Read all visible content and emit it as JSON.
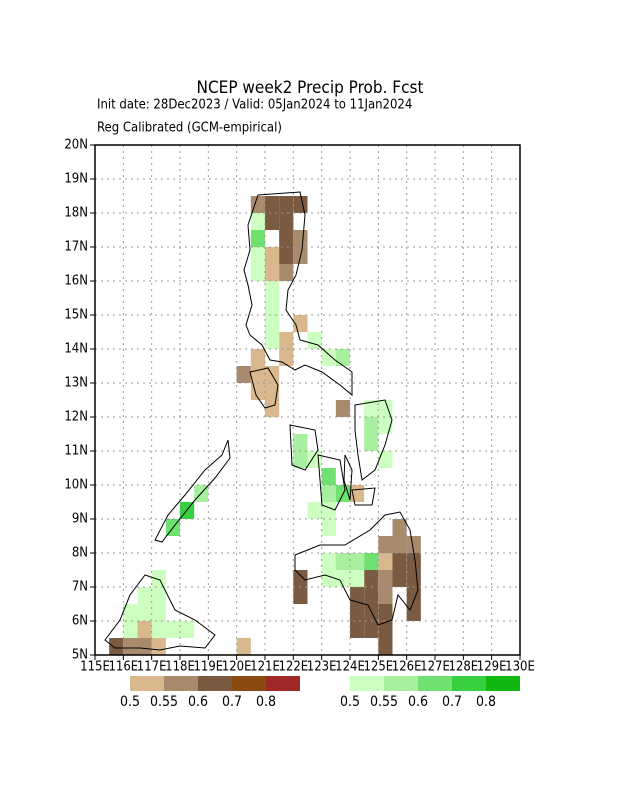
{
  "chart_data": {
    "type": "gridmap",
    "title": "NCEP week2 Precip Prob. Fcst",
    "subtitle": "Init date: 28Dec2023 / Valid: 05Jan2024 to 11Jan2024",
    "note": "Reg Calibrated (GCM-empirical)",
    "xlim": [
      115,
      130
    ],
    "ylim": [
      5,
      20
    ],
    "xticks": [
      {
        "value": 115,
        "label": "115E"
      },
      {
        "value": 116,
        "label": "116E"
      },
      {
        "value": 117,
        "label": "117E"
      },
      {
        "value": 118,
        "label": "118E"
      },
      {
        "value": 119,
        "label": "119E"
      },
      {
        "value": 120,
        "label": "120E"
      },
      {
        "value": 121,
        "label": "121E"
      },
      {
        "value": 122,
        "label": "122E"
      },
      {
        "value": 123,
        "label": "123E"
      },
      {
        "value": 124,
        "label": "124E"
      },
      {
        "value": 125,
        "label": "125E"
      },
      {
        "value": 126,
        "label": "126E"
      },
      {
        "value": 127,
        "label": "127E"
      },
      {
        "value": 128,
        "label": "128E"
      },
      {
        "value": 129,
        "label": "129E"
      },
      {
        "value": 130,
        "label": "130E"
      }
    ],
    "yticks": [
      {
        "value": 5,
        "label": "5N"
      },
      {
        "value": 6,
        "label": "6N"
      },
      {
        "value": 7,
        "label": "7N"
      },
      {
        "value": 8,
        "label": "8N"
      },
      {
        "value": 9,
        "label": "9N"
      },
      {
        "value": 10,
        "label": "10N"
      },
      {
        "value": 11,
        "label": "11N"
      },
      {
        "value": 12,
        "label": "12N"
      },
      {
        "value": 13,
        "label": "13N"
      },
      {
        "value": 14,
        "label": "14N"
      },
      {
        "value": 15,
        "label": "15N"
      },
      {
        "value": 16,
        "label": "16N"
      },
      {
        "value": 17,
        "label": "17N"
      },
      {
        "value": 18,
        "label": "18N"
      },
      {
        "value": 19,
        "label": "19N"
      },
      {
        "value": 20,
        "label": "20N"
      }
    ],
    "grid": true,
    "cell_size": 0.5,
    "levels": [
      0.5,
      0.55,
      0.6,
      0.7,
      0.8
    ],
    "below_colors": [
      "#d8b88c",
      "#a88a6c",
      "#7a5a40",
      "#8a4a10",
      "#a02828"
    ],
    "above_colors": [
      "#ccffc0",
      "#a8f0a0",
      "#70e070",
      "#38d040",
      "#10b810"
    ],
    "below": [
      {
        "lon": 120.5,
        "lat": 18,
        "p": 0.55
      },
      {
        "lon": 121,
        "lat": 18,
        "p": 0.6
      },
      {
        "lon": 121.5,
        "lat": 18,
        "p": 0.6
      },
      {
        "lon": 122,
        "lat": 18,
        "p": 0.6
      },
      {
        "lon": 121,
        "lat": 17.5,
        "p": 0.6
      },
      {
        "lon": 121.5,
        "lat": 17.5,
        "p": 0.6
      },
      {
        "lon": 121.5,
        "lat": 17,
        "p": 0.6
      },
      {
        "lon": 122,
        "lat": 17,
        "p": 0.55
      },
      {
        "lon": 121,
        "lat": 16.5,
        "p": 0.5
      },
      {
        "lon": 121.5,
        "lat": 16.5,
        "p": 0.6
      },
      {
        "lon": 122,
        "lat": 16.5,
        "p": 0.55
      },
      {
        "lon": 121,
        "lat": 16,
        "p": 0.5
      },
      {
        "lon": 121.5,
        "lat": 16,
        "p": 0.55
      },
      {
        "lon": 122,
        "lat": 14.5,
        "p": 0.5
      },
      {
        "lon": 121.5,
        "lat": 14,
        "p": 0.5
      },
      {
        "lon": 120.5,
        "lat": 13.5,
        "p": 0.5
      },
      {
        "lon": 121.5,
        "lat": 13.5,
        "p": 0.5
      },
      {
        "lon": 120,
        "lat": 13,
        "p": 0.55
      },
      {
        "lon": 120.5,
        "lat": 13,
        "p": 0.5
      },
      {
        "lon": 121,
        "lat": 13,
        "p": 0.5
      },
      {
        "lon": 120.5,
        "lat": 12.5,
        "p": 0.5
      },
      {
        "lon": 121,
        "lat": 12.5,
        "p": 0.5
      },
      {
        "lon": 121,
        "lat": 12,
        "p": 0.5
      },
      {
        "lon": 123.5,
        "lat": 12,
        "p": 0.55
      },
      {
        "lon": 122,
        "lat": 11,
        "p": 0.5
      },
      {
        "lon": 124,
        "lat": 9.5,
        "p": 0.5
      },
      {
        "lon": 125.5,
        "lat": 8.5,
        "p": 0.55
      },
      {
        "lon": 125,
        "lat": 8,
        "p": 0.55
      },
      {
        "lon": 125.5,
        "lat": 8,
        "p": 0.55
      },
      {
        "lon": 126,
        "lat": 8,
        "p": 0.55
      },
      {
        "lon": 125,
        "lat": 7.5,
        "p": 0.5
      },
      {
        "lon": 125.5,
        "lat": 7.5,
        "p": 0.6
      },
      {
        "lon": 126,
        "lat": 7.5,
        "p": 0.6
      },
      {
        "lon": 122,
        "lat": 7,
        "p": 0.6
      },
      {
        "lon": 124.5,
        "lat": 7,
        "p": 0.6
      },
      {
        "lon": 125,
        "lat": 7,
        "p": 0.55
      },
      {
        "lon": 125.5,
        "lat": 7,
        "p": 0.6
      },
      {
        "lon": 126,
        "lat": 7,
        "p": 0.6
      },
      {
        "lon": 122,
        "lat": 6.5,
        "p": 0.6
      },
      {
        "lon": 124,
        "lat": 6.5,
        "p": 0.6
      },
      {
        "lon": 124.5,
        "lat": 6.5,
        "p": 0.6
      },
      {
        "lon": 125,
        "lat": 6.5,
        "p": 0.55
      },
      {
        "lon": 126,
        "lat": 6.5,
        "p": 0.6
      },
      {
        "lon": 124,
        "lat": 6,
        "p": 0.6
      },
      {
        "lon": 124.5,
        "lat": 6,
        "p": 0.6
      },
      {
        "lon": 125,
        "lat": 6,
        "p": 0.6
      },
      {
        "lon": 126,
        "lat": 6,
        "p": 0.6
      },
      {
        "lon": 124,
        "lat": 5.5,
        "p": 0.6
      },
      {
        "lon": 124.5,
        "lat": 5.5,
        "p": 0.6
      },
      {
        "lon": 125,
        "lat": 5.5,
        "p": 0.6
      },
      {
        "lon": 125,
        "lat": 5,
        "p": 0.6
      },
      {
        "lon": 115.5,
        "lat": 5,
        "p": 0.6
      },
      {
        "lon": 116,
        "lat": 5,
        "p": 0.55
      },
      {
        "lon": 116.5,
        "lat": 5,
        "p": 0.55
      },
      {
        "lon": 117,
        "lat": 5,
        "p": 0.5
      },
      {
        "lon": 116.5,
        "lat": 5.5,
        "p": 0.5
      },
      {
        "lon": 120,
        "lat": 5,
        "p": 0.5
      }
    ],
    "above": [
      {
        "lon": 120.5,
        "lat": 17.5,
        "p": 0.5
      },
      {
        "lon": 120.5,
        "lat": 17,
        "p": 0.6
      },
      {
        "lon": 120.5,
        "lat": 16.5,
        "p": 0.5
      },
      {
        "lon": 120.5,
        "lat": 16,
        "p": 0.5
      },
      {
        "lon": 121,
        "lat": 15.5,
        "p": 0.5
      },
      {
        "lon": 121,
        "lat": 15,
        "p": 0.5
      },
      {
        "lon": 121,
        "lat": 14.5,
        "p": 0.5
      },
      {
        "lon": 121,
        "lat": 14,
        "p": 0.5
      },
      {
        "lon": 122.5,
        "lat": 14,
        "p": 0.5
      },
      {
        "lon": 123,
        "lat": 13.5,
        "p": 0.5
      },
      {
        "lon": 123.5,
        "lat": 13.5,
        "p": 0.55
      },
      {
        "lon": 124.5,
        "lat": 12,
        "p": 0.5
      },
      {
        "lon": 125,
        "lat": 12,
        "p": 0.5
      },
      {
        "lon": 124.5,
        "lat": 11.5,
        "p": 0.55
      },
      {
        "lon": 125,
        "lat": 11.5,
        "p": 0.5
      },
      {
        "lon": 124.5,
        "lat": 11,
        "p": 0.55
      },
      {
        "lon": 125,
        "lat": 10.5,
        "p": 0.5
      },
      {
        "lon": 122,
        "lat": 11,
        "p": 0.55
      },
      {
        "lon": 122,
        "lat": 10.5,
        "p": 0.55
      },
      {
        "lon": 122.5,
        "lat": 10.5,
        "p": 0.5
      },
      {
        "lon": 123,
        "lat": 10,
        "p": 0.6
      },
      {
        "lon": 123,
        "lat": 9.5,
        "p": 0.55
      },
      {
        "lon": 123.5,
        "lat": 9.5,
        "p": 0.6
      },
      {
        "lon": 122.5,
        "lat": 9,
        "p": 0.5
      },
      {
        "lon": 123,
        "lat": 9,
        "p": 0.5
      },
      {
        "lon": 123,
        "lat": 8.5,
        "p": 0.5
      },
      {
        "lon": 118.5,
        "lat": 9.5,
        "p": 0.55
      },
      {
        "lon": 118,
        "lat": 9,
        "p": 0.7
      },
      {
        "lon": 117.5,
        "lat": 8.5,
        "p": 0.6
      },
      {
        "lon": 123,
        "lat": 7.5,
        "p": 0.5
      },
      {
        "lon": 123.5,
        "lat": 7.5,
        "p": 0.55
      },
      {
        "lon": 124,
        "lat": 7.5,
        "p": 0.55
      },
      {
        "lon": 124.5,
        "lat": 7.5,
        "p": 0.6
      },
      {
        "lon": 123,
        "lat": 7,
        "p": 0.5
      },
      {
        "lon": 123.5,
        "lat": 7,
        "p": 0.5
      },
      {
        "lon": 124,
        "lat": 7,
        "p": 0.5
      },
      {
        "lon": 117,
        "lat": 7,
        "p": 0.5
      },
      {
        "lon": 116.5,
        "lat": 6.5,
        "p": 0.5
      },
      {
        "lon": 117,
        "lat": 6.5,
        "p": 0.5
      },
      {
        "lon": 116,
        "lat": 6,
        "p": 0.5
      },
      {
        "lon": 116.5,
        "lat": 6,
        "p": 0.5
      },
      {
        "lon": 117,
        "lat": 6,
        "p": 0.5
      },
      {
        "lon": 116,
        "lat": 5.5,
        "p": 0.5
      },
      {
        "lon": 117,
        "lat": 5.5,
        "p": 0.5
      },
      {
        "lon": 117.5,
        "lat": 5.5,
        "p": 0.5
      },
      {
        "lon": 118,
        "lat": 5.5,
        "p": 0.5
      }
    ]
  }
}
